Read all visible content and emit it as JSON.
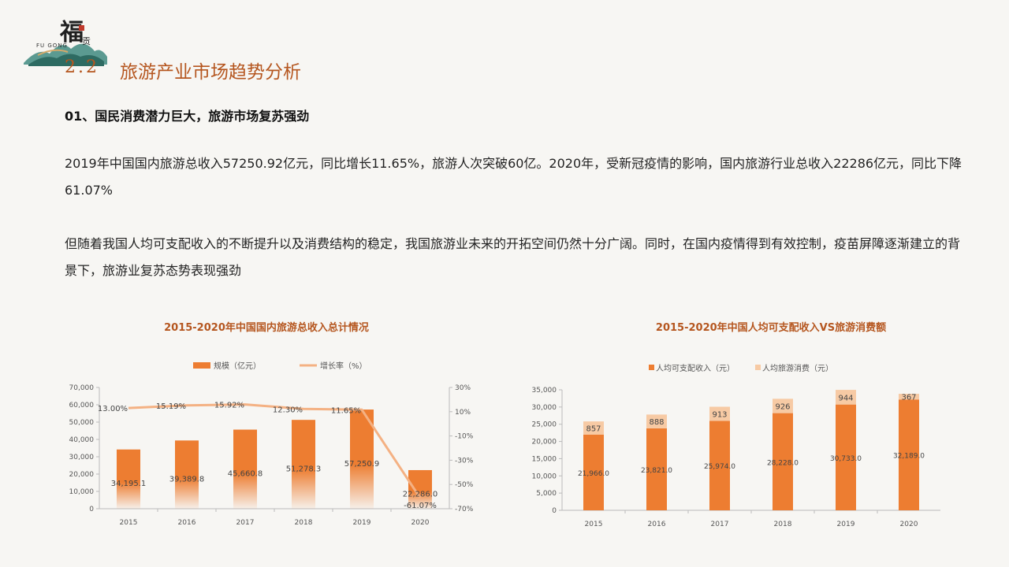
{
  "logo": {
    "char": "福",
    "small": "贡",
    "sub": "FU GONG"
  },
  "heading": {
    "number": "2.2",
    "title": "旅游产业市场趋势分析"
  },
  "sub_heading": "01、国民消费潜力巨大，旅游市场复苏强劲",
  "paragraphs": [
    "2019年中国国内旅游总收入57250.92亿元，同比增长11.65%，旅游人次突破60亿。2020年，受新冠疫情的影响，国内旅游行业总收入22286亿元，同比下降61.07%",
    "但随着我国人均可支配收入的不断提升以及消费结构的稳定，我国旅游业未来的开拓空间仍然十分广阔。同时，在国内疫情得到有效控制，疫苗屏障逐渐建立的背景下，旅游业复苏态势表现强劲"
  ],
  "colors": {
    "accent": "#b5561f",
    "bar": "#ed7d31",
    "light": "#f7caa4",
    "line": "#f4b183"
  },
  "chart_data": [
    {
      "type": "bar",
      "title": "2015-2020年中国国内旅游总收入总计情况",
      "categories": [
        "2015",
        "2016",
        "2017",
        "2018",
        "2019",
        "2020"
      ],
      "series": [
        {
          "name": "规模（亿元）",
          "type": "bar",
          "values": [
            34195.1,
            39389.8,
            45660.8,
            51278.3,
            57250.9,
            22286.0
          ],
          "labels": [
            "34,195.1",
            "39,389.8",
            "45,660.8",
            "51,278.3",
            "57,250.9",
            "22,286.0"
          ]
        },
        {
          "name": "增长率（%）",
          "type": "line",
          "values": [
            13.0,
            15.19,
            15.92,
            12.3,
            11.65,
            -61.07
          ],
          "labels": [
            "13.00%",
            "15.19%",
            "15.92%",
            "12.30%",
            "11.65%",
            "-61.07%"
          ]
        }
      ],
      "ylim": [
        0,
        70000
      ],
      "yticks": [
        "0",
        "10,000",
        "20,000",
        "30,000",
        "40,000",
        "50,000",
        "60,000",
        "70,000"
      ],
      "y2lim": [
        -70,
        30
      ],
      "y2ticks": [
        "-70%",
        "-50%",
        "-30%",
        "-10%",
        "10%",
        "30%"
      ],
      "legend": "top"
    },
    {
      "type": "bar",
      "stacked": true,
      "title": "2015-2020年中国人均可支配收入VS旅游消费额",
      "categories": [
        "2015",
        "2016",
        "2017",
        "2018",
        "2019",
        "2020"
      ],
      "series": [
        {
          "name": "人均可支配收入（元）",
          "values": [
            21966.0,
            23821.0,
            25974.0,
            28228.0,
            30733.0,
            32189.0
          ],
          "labels": [
            "21,966.0",
            "23,821.0",
            "25,974.0",
            "28,228.0",
            "30,733.0",
            "32,189.0"
          ]
        },
        {
          "name": "人均旅游消费（元）",
          "values": [
            857,
            888,
            913,
            926,
            944,
            367
          ],
          "labels": [
            "857",
            "888",
            "913",
            "926",
            "944",
            "367"
          ]
        }
      ],
      "ylim": [
        0,
        35000
      ],
      "yticks": [
        "0",
        "5,000",
        "10,000",
        "15,000",
        "20,000",
        "25,000",
        "30,000",
        "35,000"
      ],
      "legend": "top"
    }
  ]
}
